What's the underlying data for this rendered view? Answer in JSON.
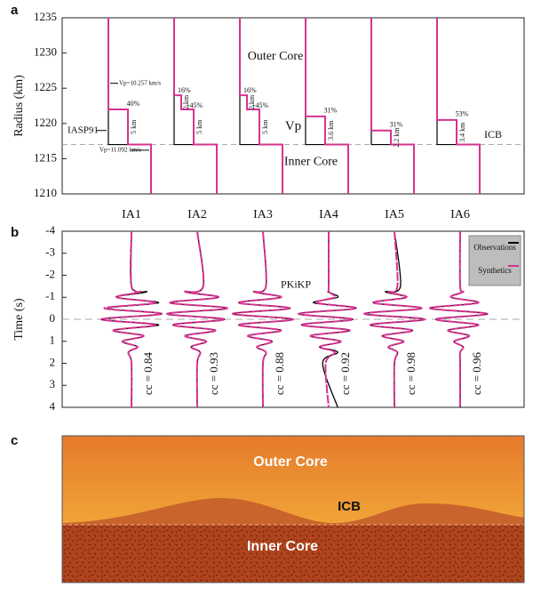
{
  "chart_data": [
    {
      "type": "step-profile",
      "panel_label": "a",
      "ylabel": "Radius (km)",
      "ylim": [
        1210,
        1235
      ],
      "yticks": [
        1210,
        1215,
        1220,
        1225,
        1230,
        1235
      ],
      "categories": [
        "IA1",
        "IA2",
        "IA3",
        "IA4",
        "IA5",
        "IA6"
      ],
      "layer_top": [
        1222,
        1224,
        1224,
        1221,
        1219,
        1220.5
      ],
      "layer_mid": [
        null,
        1222,
        1222,
        null,
        null,
        null
      ],
      "icb_radius": 1217,
      "model_color": "#d6338f",
      "reference_color": "#000000",
      "annotations": [
        [
          "40%",
          "5 km"
        ],
        [
          "16%",
          "2 km",
          "+45%",
          "5 km"
        ],
        [
          "16%",
          "2 km",
          "+45%",
          "5 km"
        ],
        [
          "31%",
          "3.6 km"
        ],
        [
          "31%",
          "2.2 km"
        ],
        [
          "53%",
          "3.4 km"
        ]
      ],
      "labels": {
        "outer_core": "Outer Core",
        "inner_core": "Inner Core",
        "vp": "Vp",
        "icb": "ICB",
        "reference": "IASP91",
        "vp_outer": "Vp=10.257 km/s",
        "vp_inner": "Vp=11.092 km/s"
      }
    },
    {
      "type": "waveform",
      "panel_label": "b",
      "ylabel": "Time (s)",
      "annotation": "PKiKP",
      "ylim": [
        4,
        -4
      ],
      "yticks": [
        -4,
        -3,
        -2,
        -1,
        0,
        1,
        2,
        3,
        4
      ],
      "legend": "upper right",
      "categories": [
        "IA1",
        "IA2",
        "IA3",
        "IA4",
        "IA5",
        "IA6"
      ],
      "x": [
        -4,
        -1.5,
        -1.25,
        -1,
        -0.75,
        -0.5,
        -0.25,
        0,
        0.25,
        0.5,
        0.75,
        1,
        1.25,
        1.5,
        2,
        4
      ],
      "series": [
        {
          "name": "Observations",
          "color": "#000000",
          "values": [
            [
              0,
              0,
              0.5,
              -0.5,
              0.9,
              -0.8,
              1,
              -1,
              0.9,
              -0.6,
              0.4,
              -0.3,
              0.2,
              -0.1,
              0,
              0
            ],
            [
              0,
              0.2,
              -0.4,
              0.7,
              -0.9,
              1,
              -1,
              0.9,
              -0.8,
              0.6,
              -0.4,
              0.3,
              -0.2,
              0.1,
              0,
              0
            ],
            [
              0,
              0.1,
              -0.3,
              0.6,
              -0.8,
              0.9,
              -1,
              1,
              -0.8,
              0.6,
              -0.5,
              0.3,
              -0.2,
              0.1,
              0,
              0
            ],
            [
              0,
              0,
              0,
              0.3,
              -0.5,
              0.9,
              -1,
              0.8,
              -0.9,
              0.7,
              -0.6,
              0.4,
              -0.3,
              0.3,
              -0.2,
              0.3
            ],
            [
              0,
              0.2,
              -0.3,
              0.4,
              -0.7,
              0.9,
              -1,
              1,
              -0.8,
              0.6,
              -0.4,
              0.3,
              -0.2,
              0.1,
              0,
              0
            ],
            [
              0,
              0,
              0.1,
              -0.3,
              0.6,
              -1,
              0.9,
              -0.8,
              0.6,
              -0.4,
              0.3,
              -0.2,
              0.1,
              0,
              0,
              0
            ]
          ]
        },
        {
          "name": "Synthetics",
          "color": "#d6338f",
          "values": [
            [
              0,
              0,
              0.3,
              -0.5,
              0.8,
              -0.9,
              1,
              -1,
              0.8,
              -0.6,
              0.4,
              -0.3,
              0.2,
              -0.1,
              0,
              0
            ],
            [
              0,
              0.2,
              -0.4,
              0.7,
              -0.9,
              1,
              -1,
              0.9,
              -0.8,
              0.6,
              -0.4,
              0.3,
              -0.2,
              0.1,
              0,
              0
            ],
            [
              0,
              0.1,
              -0.3,
              0.6,
              -0.8,
              0.9,
              -1,
              1,
              -0.8,
              0.6,
              -0.5,
              0.3,
              -0.2,
              0.1,
              0,
              0
            ],
            [
              0,
              0,
              0,
              0.2,
              -0.4,
              0.9,
              -1,
              0.8,
              -0.9,
              0.7,
              -0.6,
              0.4,
              -0.3,
              0.2,
              -0.1,
              0
            ],
            [
              0,
              0.1,
              -0.2,
              0.4,
              -0.7,
              0.9,
              -1,
              1,
              -0.8,
              0.6,
              -0.4,
              0.3,
              -0.2,
              0.1,
              0,
              0
            ],
            [
              0,
              0,
              0.1,
              -0.3,
              0.6,
              -1,
              0.9,
              -0.8,
              0.6,
              -0.4,
              0.3,
              -0.2,
              0.1,
              0,
              0,
              0
            ]
          ]
        }
      ],
      "values": [
        0.84,
        0.93,
        0.88,
        0.92,
        0.98,
        0.96
      ],
      "value_labels": [
        "cc = 0.84",
        "cc = 0.93",
        "cc = 0.88",
        "cc = 0.92",
        "cc = 0.98",
        "cc = 0.96"
      ]
    }
  ],
  "illustration": {
    "panel_label": "c",
    "outer_core": "Outer Core",
    "icb": "ICB",
    "inner_core": "Inner Core"
  }
}
